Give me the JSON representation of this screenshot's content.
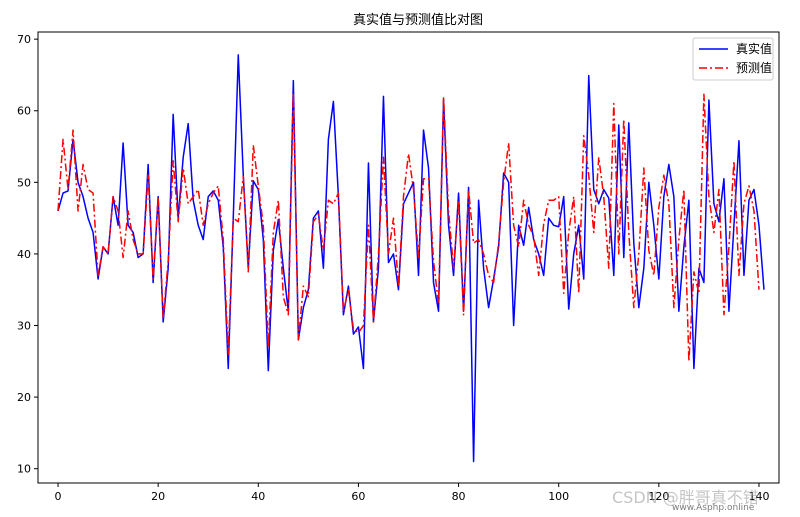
{
  "chart_data": {
    "type": "line",
    "title": "真实值与预测值比对图",
    "xlabel": "",
    "ylabel": "",
    "xlim": [
      -4,
      144
    ],
    "ylim": [
      8,
      71
    ],
    "xticks": [
      0,
      20,
      40,
      60,
      80,
      100,
      120,
      140
    ],
    "yticks": [
      10,
      20,
      30,
      40,
      50,
      60,
      70
    ],
    "grid": false,
    "legend": "top-right",
    "series": [
      {
        "name": "真实值",
        "color": "#0000ff",
        "style": "solid",
        "values": [
          46,
          48.5,
          48.8,
          56,
          50,
          48,
          45,
          43,
          36.5,
          41,
          40,
          48,
          44,
          55.5,
          44,
          43,
          39.5,
          40,
          52.5,
          36,
          48,
          30.5,
          38,
          59.5,
          45,
          53.5,
          58.2,
          47.5,
          44,
          42,
          48,
          48.8,
          47.5,
          41,
          24,
          45,
          67.8,
          51,
          38,
          50.2,
          49,
          42,
          23.7,
          40.5,
          44.8,
          38,
          32,
          64.2,
          28,
          32.5,
          35,
          45,
          46,
          38,
          56,
          61.3,
          48,
          31.5,
          35.5,
          28.8,
          29.8,
          24,
          52.7,
          30.5,
          38,
          62,
          38.8,
          40,
          35,
          47,
          48.5,
          50,
          37,
          57.3,
          52,
          36,
          32,
          61.5,
          44,
          37,
          48.5,
          32,
          49.3,
          11,
          47.5,
          38,
          32.5,
          36.5,
          41,
          51.3,
          50,
          30,
          44,
          41.2,
          46.5,
          42,
          40,
          37,
          45,
          44,
          43.8,
          48,
          32.3,
          40,
          44,
          36.5,
          64.9,
          49,
          47,
          49,
          47.8,
          37,
          58,
          39.5,
          58.3,
          41.5,
          32.5,
          38,
          50,
          44,
          36.5,
          48,
          52.5,
          48,
          32,
          41,
          47.5,
          24,
          38,
          36,
          61.5,
          47,
          44.5,
          50.5,
          32,
          44,
          55.8,
          37,
          47.5,
          49,
          44,
          35
        ]
      },
      {
        "name": "预测值",
        "color": "#ff0000",
        "style": "dashdot",
        "values": [
          46,
          56,
          49,
          57.3,
          46,
          52.5,
          49,
          48.5,
          37,
          41,
          40,
          48,
          46,
          39.5,
          46,
          42,
          40,
          40,
          51,
          36.5,
          48,
          31,
          39,
          53,
          44.5,
          52,
          47,
          48,
          49,
          44,
          47,
          48.5,
          49.5,
          42,
          26,
          45,
          44.5,
          50.8,
          37.5,
          55.2,
          49.5,
          44,
          27,
          43,
          47.5,
          34,
          31.5,
          62.5,
          28,
          35.5,
          34,
          44.5,
          45.5,
          40.5,
          47.5,
          47,
          48.5,
          32,
          35,
          29.5,
          29,
          30,
          44,
          30.5,
          40,
          53.5,
          40,
          45,
          35.5,
          48,
          54,
          49,
          39.5,
          50.5,
          50.5,
          39,
          33,
          62,
          46,
          38,
          47.5,
          31.5,
          49,
          41.5,
          42,
          40,
          37,
          36,
          41.5,
          50,
          55.5,
          44,
          41,
          47.5,
          44,
          42.5,
          37,
          44.2,
          47.5,
          47.5,
          48,
          34.5,
          43,
          48,
          34.5,
          56.5,
          51,
          43,
          53.5,
          48,
          38,
          61,
          40,
          58.8,
          43,
          32.5,
          40,
          52,
          40.5,
          37,
          46.5,
          51,
          47,
          32.5,
          42,
          49,
          25,
          37.5,
          34.5,
          62.3,
          48,
          43,
          49,
          31.5,
          41,
          53,
          37,
          47,
          49.5,
          46,
          35
        ]
      }
    ]
  },
  "watermark": {
    "line1": "CSDN @胖哥真不错",
    "line2": "www.Asphp.online"
  }
}
